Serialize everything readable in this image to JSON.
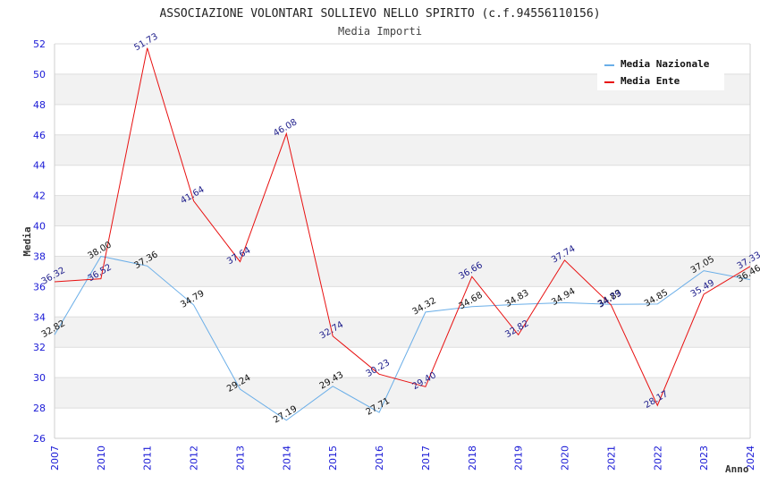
{
  "chart_data": {
    "type": "line",
    "title": "ASSOCIAZIONE VOLONTARI SOLLIEVO NELLO SPIRITO (c.f.94556110156)",
    "subtitle": "Media Importi",
    "xlabel": "Anno",
    "ylabel": "Media",
    "ylim": [
      26,
      52
    ],
    "yticks": [
      "26",
      "28",
      "30",
      "32",
      "34",
      "36",
      "38",
      "40",
      "42",
      "44",
      "46",
      "48",
      "50",
      "52"
    ],
    "grid": true,
    "legend_position": "top-right",
    "categories": [
      "2007",
      "2010",
      "2011",
      "2012",
      "2013",
      "2014",
      "2015",
      "2016",
      "2017",
      "2018",
      "2019",
      "2020",
      "2021",
      "2022",
      "2023",
      "2024"
    ],
    "series": [
      {
        "name": "Media Nazionale",
        "color": "#6aaee8",
        "label_color": "#111111",
        "values": [
          32.82,
          38.0,
          37.36,
          34.79,
          29.24,
          27.19,
          29.43,
          27.71,
          34.32,
          34.68,
          34.83,
          34.94,
          34.83,
          34.85,
          37.05,
          36.46
        ],
        "labels": [
          "32.82",
          "38.00",
          "37.36",
          "34.79",
          "29.24",
          "27.19",
          "29.43",
          "27.71",
          "34.32",
          "34.68",
          "34.83",
          "34.94",
          "34.83",
          "34.85",
          "37.05",
          "36.46"
        ]
      },
      {
        "name": "Media Ente",
        "color": "#e81010",
        "label_color": "#1c1c8a",
        "values": [
          36.32,
          36.52,
          51.73,
          41.64,
          37.64,
          46.08,
          32.74,
          30.23,
          29.4,
          36.66,
          32.82,
          37.74,
          34.79,
          28.17,
          35.49,
          37.33
        ],
        "labels": [
          "36.32",
          "36.52",
          "51.73",
          "41.64",
          "37.64",
          "46.08",
          "32.74",
          "30.23",
          "29.40",
          "36.66",
          "32.82",
          "37.74",
          "34.79",
          "28.17",
          "35.49",
          "37.33"
        ]
      }
    ]
  }
}
